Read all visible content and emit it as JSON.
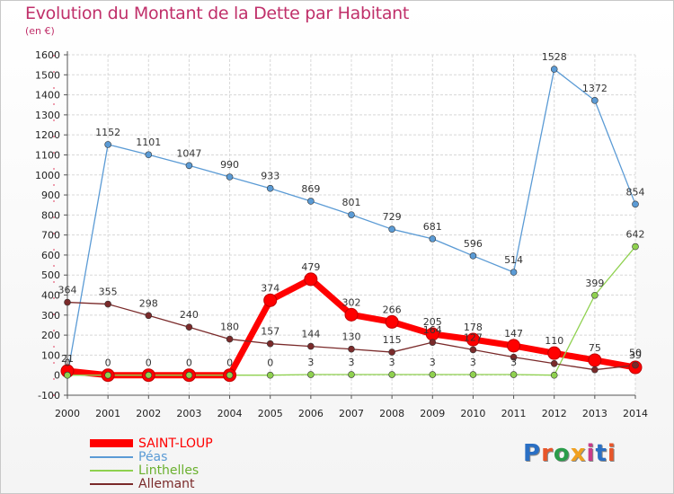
{
  "title": "Evolution du Montant de la Dette par Habitant",
  "subtitle": "(en €)",
  "logo": {
    "text": "Proxiti",
    "letter_colors": [
      "#2a6fc4",
      "#e8562a",
      "#2a9c4a",
      "#f0a020",
      "#c83a8a",
      "#2a6fc4",
      "#e8562a"
    ]
  },
  "chart_data": {
    "type": "line",
    "x": [
      "2000",
      "2001",
      "2002",
      "2003",
      "2004",
      "2005",
      "2006",
      "2007",
      "2008",
      "2009",
      "2010",
      "2011",
      "2012",
      "2013",
      "2014"
    ],
    "ylim": [
      -100,
      1600
    ],
    "yticks": [
      -100,
      0,
      100,
      200,
      300,
      400,
      500,
      600,
      700,
      800,
      900,
      1000,
      1100,
      1200,
      1300,
      1400,
      1500,
      1600
    ],
    "grid": true,
    "legend_position": "bottom-left",
    "series": [
      {
        "name": "SAINT-LOUP",
        "color": "#ff0000",
        "values": [
          21,
          0,
          0,
          0,
          0,
          374,
          479,
          302,
          266,
          205,
          178,
          147,
          110,
          75,
          39
        ],
        "labels": [
          "21",
          "0",
          "0",
          "0",
          "0",
          "374",
          "479",
          "302",
          "266",
          "205",
          "178",
          "147",
          "110",
          "75",
          "39"
        ]
      },
      {
        "name": "Péas",
        "color": "#5b9bd5",
        "values": [
          0,
          1152,
          1101,
          1047,
          990,
          933,
          869,
          801,
          729,
          681,
          596,
          514,
          1528,
          1372,
          854
        ],
        "labels": [
          "",
          "1152",
          "1101",
          "1047",
          "990",
          "933",
          "869",
          "801",
          "729",
          "681",
          "596",
          "514",
          "1528",
          "1372",
          "854"
        ]
      },
      {
        "name": "Linthelles",
        "color": "#8fd14f",
        "values": [
          0,
          0,
          0,
          0,
          0,
          0,
          3,
          3,
          3,
          3,
          3,
          3,
          0,
          399,
          642
        ],
        "labels": [
          "0",
          "",
          "",
          "",
          "",
          "0",
          "3",
          "3",
          "3",
          "3",
          "3",
          "3",
          "",
          "399",
          "642"
        ]
      },
      {
        "name": "Allemant",
        "color": "#7a2a2a",
        "values": [
          364,
          355,
          298,
          240,
          180,
          157,
          144,
          130,
          115,
          164,
          127,
          90,
          58,
          27,
          50
        ],
        "labels": [
          "364",
          "355",
          "298",
          "240",
          "180",
          "157",
          "144",
          "130",
          "115",
          "164",
          "127",
          "",
          "",
          "",
          "50"
        ]
      }
    ]
  }
}
